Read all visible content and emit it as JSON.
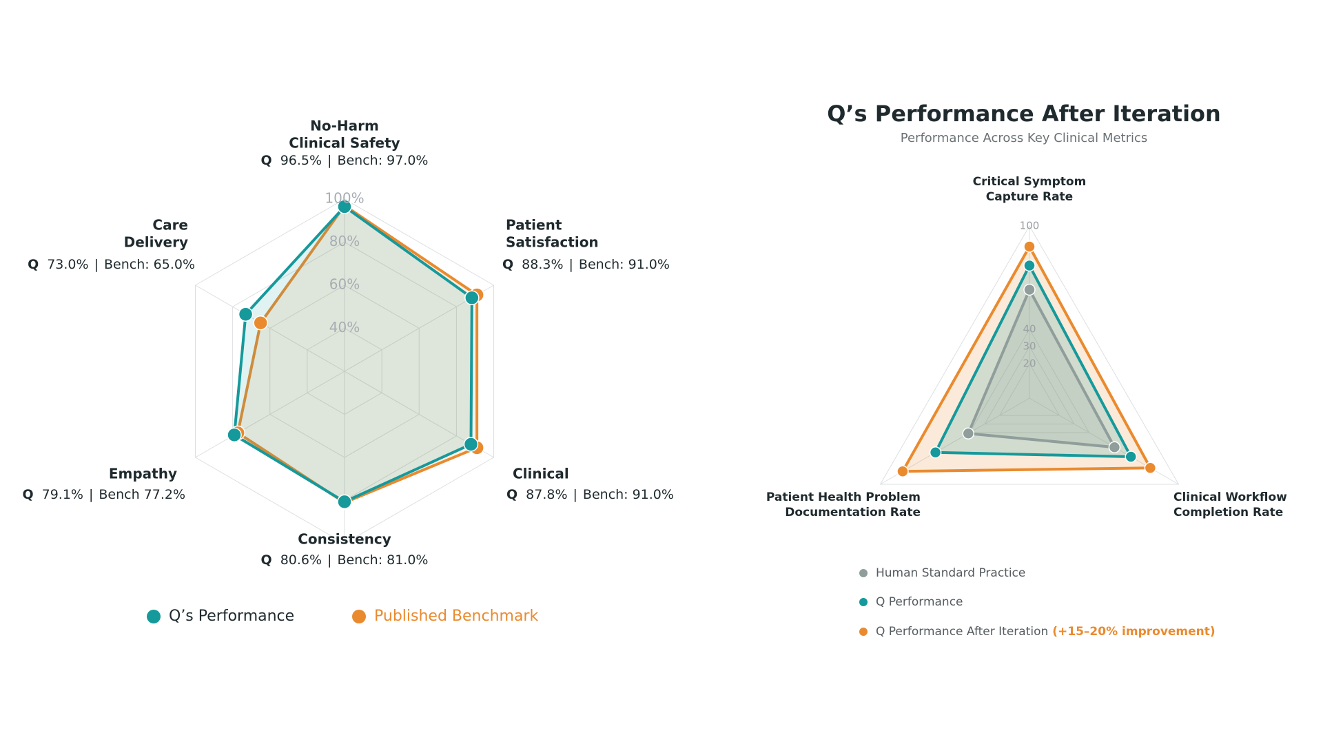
{
  "chart_data": [
    {
      "type": "radar",
      "categories": [
        [
          "No-Harm",
          "Clinical Safety"
        ],
        [
          "Patient",
          "Satisfaction"
        ],
        [
          "Clinical"
        ],
        [
          "Consistency"
        ],
        [
          "Empathy"
        ],
        [
          "Care",
          "Delivery"
        ]
      ],
      "series": [
        {
          "name": "Published Benchmark",
          "color": "#ea8a2e",
          "values": [
            97.0,
            91.0,
            91.0,
            81.0,
            77.2,
            65.0
          ],
          "value_labels": [
            "97.0%",
            "91.0%",
            "91.0%",
            "81.0%",
            "77.2%",
            "65.0%"
          ],
          "label_prefixes": [
            "Bench:",
            "Bench:",
            "Bench:",
            "Bench:",
            "Bench",
            "Bench:"
          ]
        },
        {
          "name": "Q’s Performance",
          "color": "#16999b",
          "values": [
            96.5,
            88.3,
            87.8,
            80.6,
            79.1,
            73.0
          ],
          "value_labels": [
            "96.5%",
            "88.3%",
            "87.8%",
            "80.6%",
            "79.1%",
            "73.0%"
          ],
          "label_prefix": "Q"
        }
      ],
      "label_separator": "|",
      "rlim": [
        20,
        100
      ],
      "rticks": [
        {
          "value": 40,
          "label": "40%"
        },
        {
          "value": 60,
          "label": "60%"
        },
        {
          "value": 80,
          "label": "80%"
        },
        {
          "value": 100,
          "label": "100%"
        }
      ]
    },
    {
      "type": "radar",
      "title": "Q’s Performance After Iteration",
      "subtitle": "Performance Across Key Clinical Metrics",
      "categories": [
        [
          "Critical Symptom",
          "Capture Rate"
        ],
        [
          "Clinical Workflow",
          "Completion Rate"
        ],
        [
          "Patient Health Problem",
          "Documentation Rate"
        ]
      ],
      "series": [
        {
          "name": "Q Performance After Iteration",
          "color": "#ea8a2e",
          "values": [
            88,
            81,
            85
          ],
          "legend_note": "(+15–20% improvement)"
        },
        {
          "name": "Q Performance",
          "color": "#16999b",
          "values": [
            77,
            68,
            63
          ]
        },
        {
          "name": "Human Standard Practice",
          "color": "#8f9e9b",
          "values": [
            63,
            57,
            41
          ]
        }
      ],
      "rlim": [
        0,
        100
      ],
      "rticks": [
        20,
        30,
        40,
        100
      ]
    }
  ]
}
